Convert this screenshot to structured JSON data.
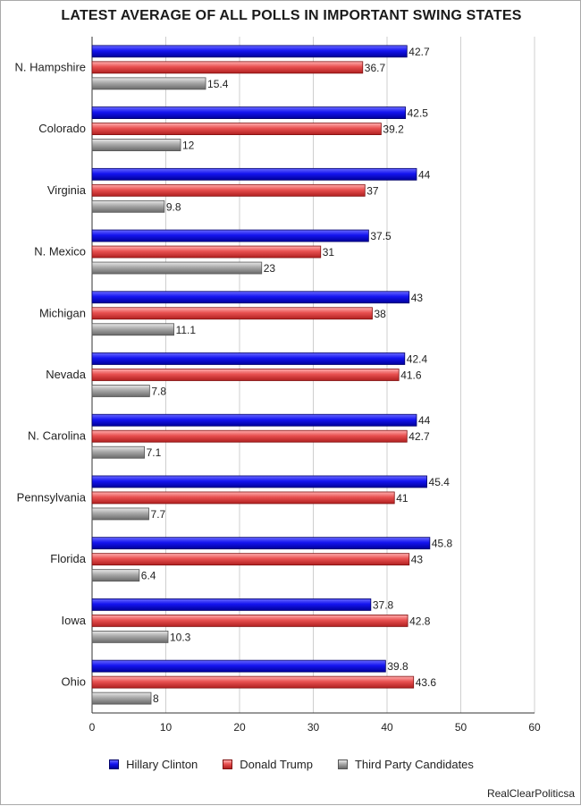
{
  "chart_data": {
    "type": "bar",
    "orientation": "horizontal",
    "title": "LATEST AVERAGE OF ALL POLLS IN IMPORTANT SWING STATES",
    "categories": [
      "N. Hampshire",
      "Colorado",
      "Virginia",
      "N. Mexico",
      "Michigan",
      "Nevada",
      "N. Carolina",
      "Pennsylvania",
      "Florida",
      "Iowa",
      "Ohio"
    ],
    "series": [
      {
        "name": "Hillary Clinton",
        "color": "#1010e0",
        "values": [
          42.7,
          42.5,
          44,
          37.5,
          43,
          42.4,
          44,
          45.4,
          45.8,
          37.8,
          39.8
        ]
      },
      {
        "name": "Donald Trump",
        "color": "#e04848",
        "values": [
          36.7,
          39.2,
          37,
          31,
          38,
          41.6,
          42.7,
          41,
          43,
          42.8,
          43.6
        ]
      },
      {
        "name": "Third Party Candidates",
        "color": "#a0a0a0",
        "values": [
          15.4,
          12,
          9.8,
          23,
          11.1,
          7.8,
          7.1,
          7.7,
          6.4,
          10.3,
          8
        ]
      }
    ],
    "xlim": [
      0,
      60
    ],
    "xticks": [
      "0",
      "10",
      "20",
      "30",
      "40",
      "50",
      "60"
    ],
    "grid": true,
    "legend_position": "bottom"
  },
  "source": "RealClearPoliticsa"
}
